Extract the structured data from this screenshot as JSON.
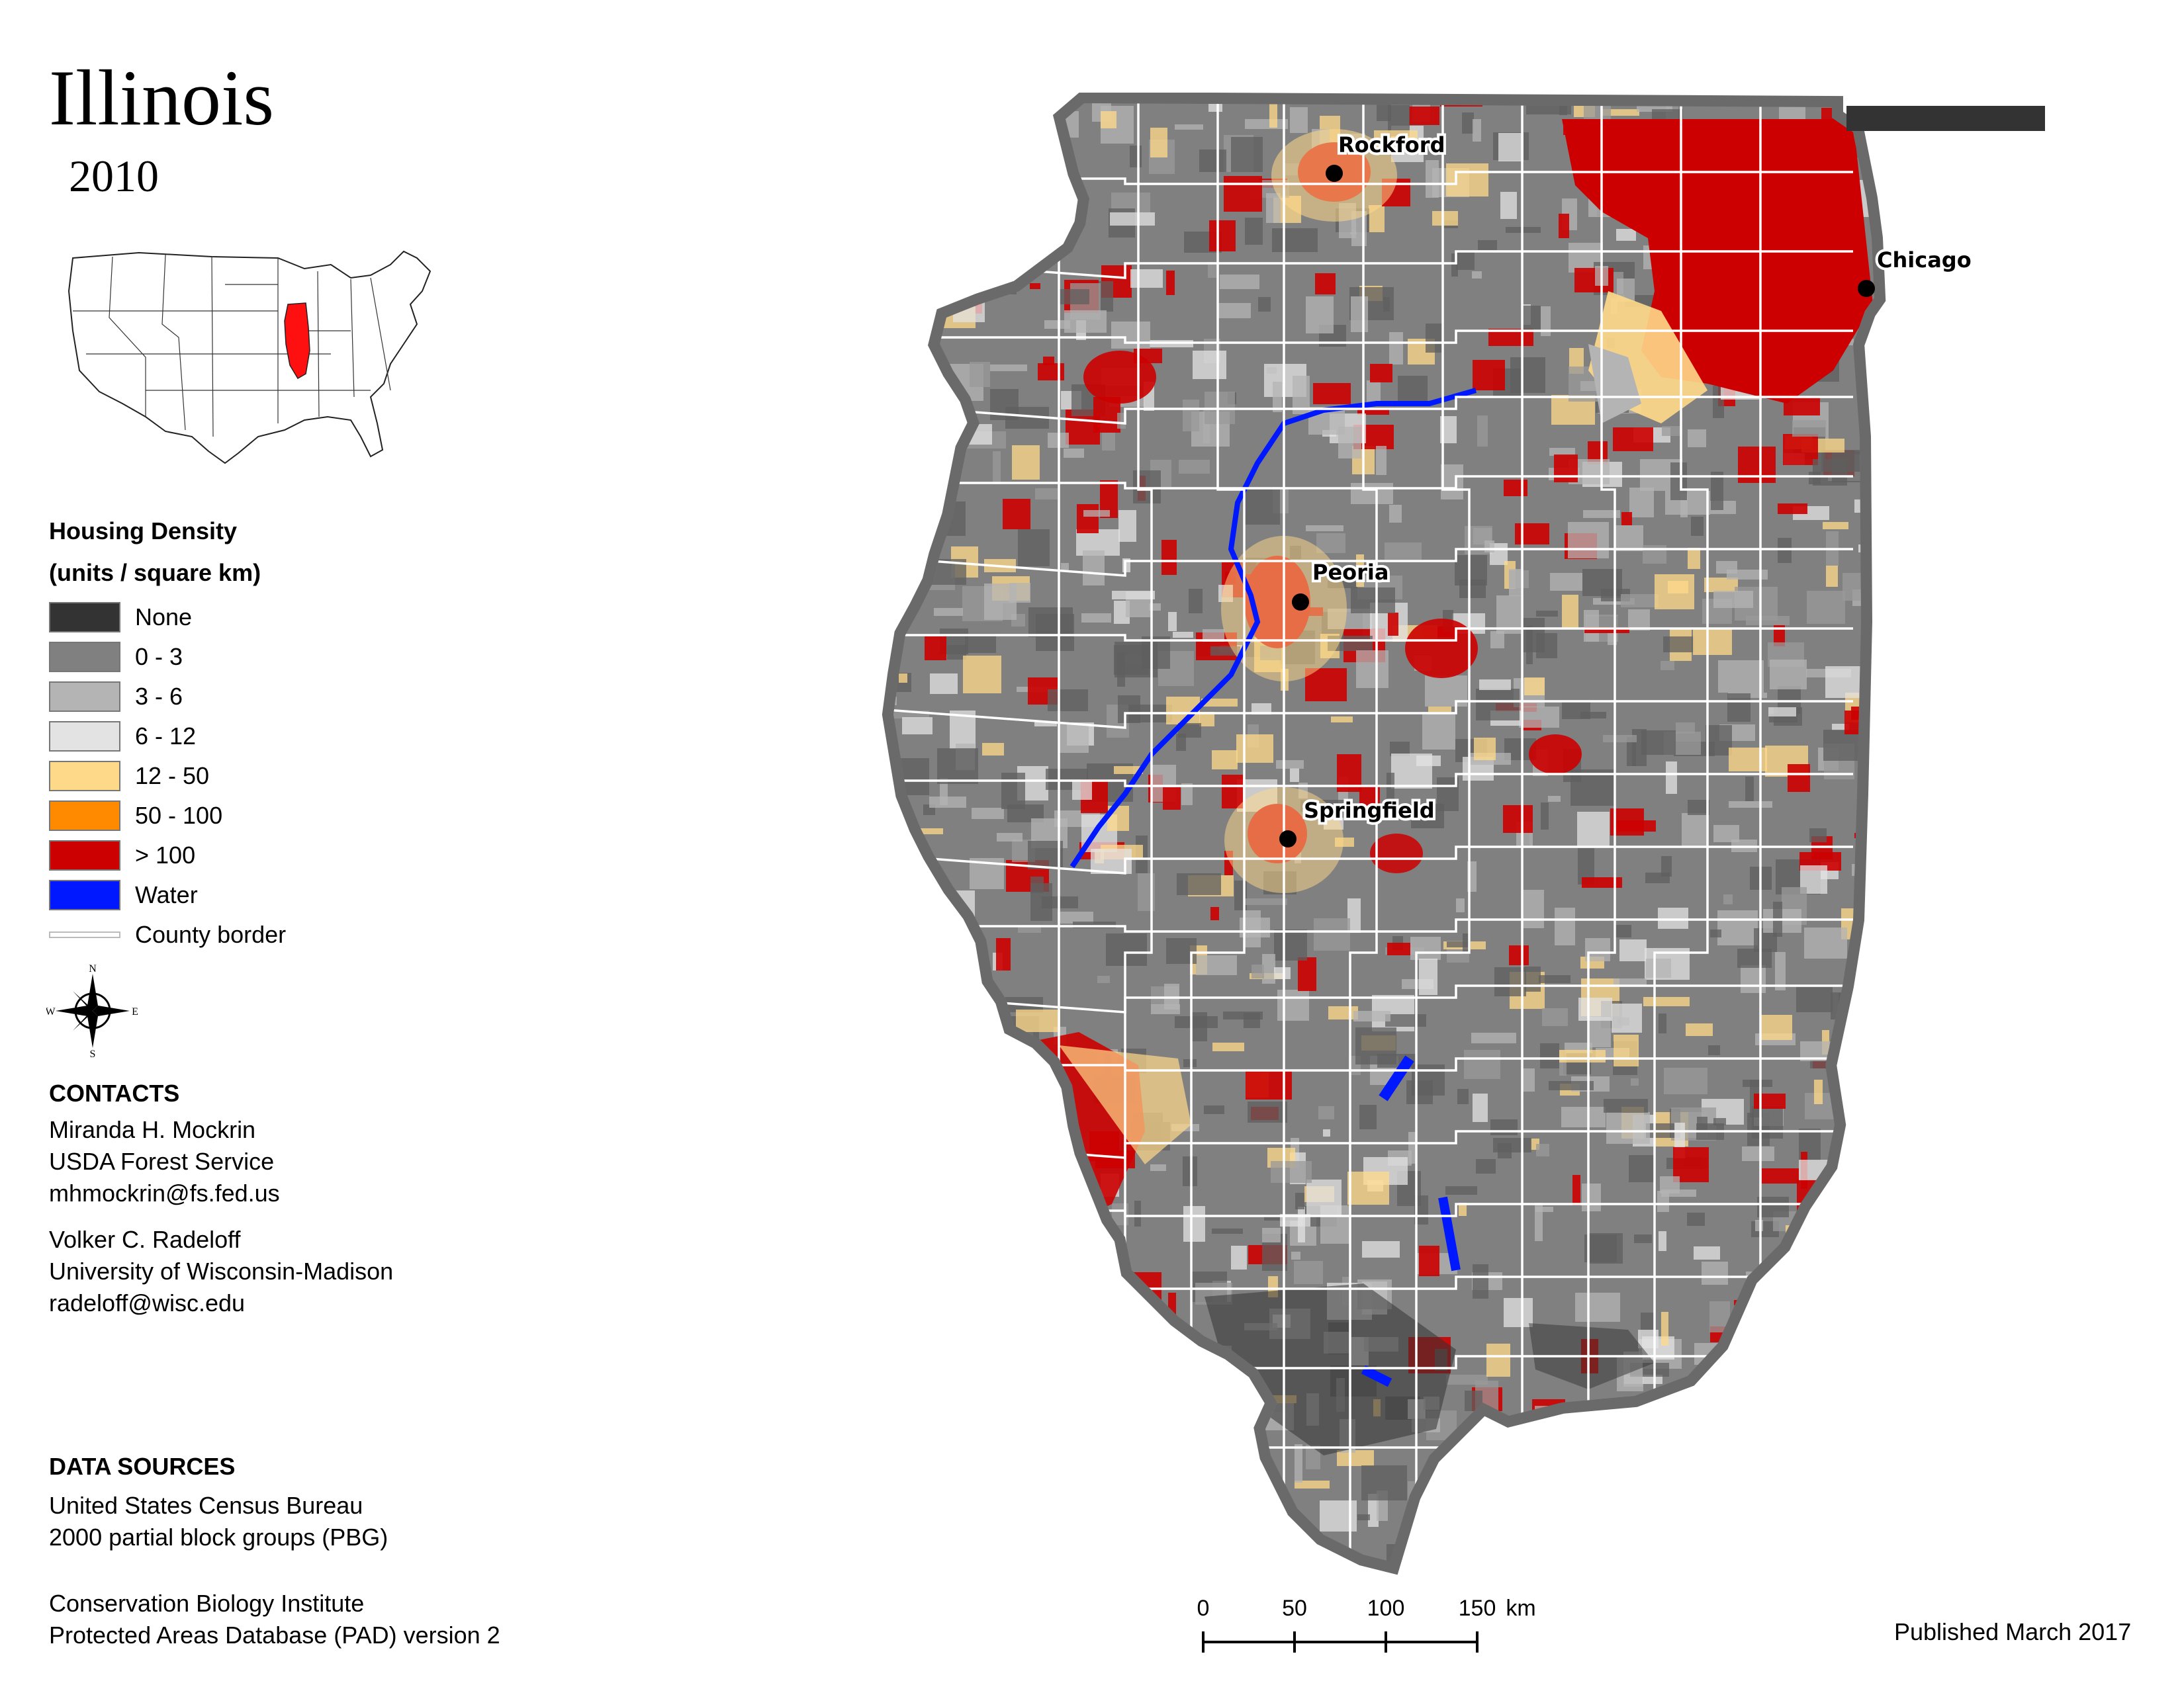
{
  "title": "Illinois",
  "year": "2010",
  "legend": {
    "title": "Housing Density",
    "subtitle": "(units / square km)",
    "items": [
      {
        "label": "None",
        "color": "#333333"
      },
      {
        "label": "0 - 3",
        "color": "#808080"
      },
      {
        "label": "3 - 6",
        "color": "#b4b4b4"
      },
      {
        "label": "6 - 12",
        "color": "#e3e3e3"
      },
      {
        "label": "12 - 50",
        "color": "#ffd98a"
      },
      {
        "label": "50 - 100",
        "color": "#ff8a00"
      },
      {
        "label": "> 100",
        "color": "#cc0000"
      },
      {
        "label": "Water",
        "color": "#0018ff"
      },
      {
        "label": "County border",
        "color": "#ffffff",
        "line": true
      }
    ]
  },
  "compass": {
    "n": "N",
    "s": "S",
    "e": "E",
    "w": "W"
  },
  "contacts": {
    "heading": "CONTACTS",
    "people": [
      {
        "name": "Miranda H. Mockrin",
        "org": "USDA Forest Service",
        "email": "mhmockrin@fs.fed.us"
      },
      {
        "name": "Volker C. Radeloff",
        "org": "University of Wisconsin-Madison",
        "email": "radeloff@wisc.edu"
      }
    ]
  },
  "data_sources": {
    "heading": "DATA SOURCES",
    "sources": [
      {
        "line1": "United States Census Bureau",
        "line2": "2000 partial block groups (PBG)"
      },
      {
        "line1": "Conservation Biology Institute",
        "line2": "Protected Areas Database (PAD) version 2"
      }
    ]
  },
  "cities": [
    {
      "name": "Rockford"
    },
    {
      "name": "Chicago"
    },
    {
      "name": "Peoria"
    },
    {
      "name": "Springfield"
    }
  ],
  "scale": {
    "ticks": [
      "0",
      "50",
      "100",
      "150"
    ],
    "unit": "km"
  },
  "published": "Published March 2017",
  "colors": {
    "state_outline": "#6a6a6a",
    "county_border": "#ffffff",
    "city_dot": "#000000"
  }
}
